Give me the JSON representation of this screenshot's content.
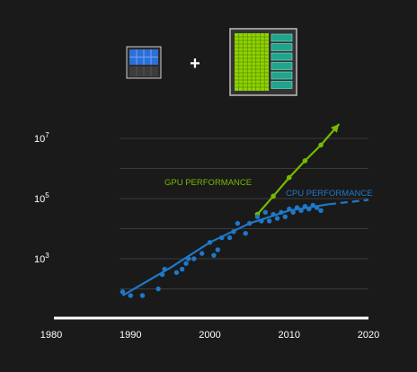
{
  "header": {
    "cpu_chip_icon": "cpu-chip-icon",
    "plus_sign": "+",
    "gpu_chip_icon": "gpu-chip-icon"
  },
  "colors": {
    "background": "#1a1a1a",
    "gpu": "#76b900",
    "cpu": "#1f78c8",
    "axis": "#ffffff",
    "grid": "#3a3a3a",
    "text": "#ffffff"
  },
  "chart_data": {
    "type": "scatter",
    "title": "",
    "xlabel": "",
    "ylabel": "",
    "y_scale": "log",
    "grid": true,
    "xlim": [
      1980,
      2020
    ],
    "ylim": [
      1,
      100000000
    ],
    "x_ticks": [
      1980,
      1990,
      2000,
      2010,
      2020
    ],
    "y_ticks": [
      {
        "value": 1000,
        "label_base": "10",
        "label_exp": "3"
      },
      {
        "value": 100000,
        "label_base": "10",
        "label_exp": "5"
      },
      {
        "value": 10000000,
        "label_base": "10",
        "label_exp": "7"
      }
    ],
    "series": [
      {
        "name": "GPU PERFORMANCE",
        "kind": "line-with-markers",
        "color": "#76b900",
        "x": [
          2006,
          2008,
          2010,
          2012,
          2014,
          2016.3
        ],
        "y": [
          30000,
          120000,
          500000,
          1800000,
          6000000,
          30000000
        ],
        "markers_until": 2014
      },
      {
        "name": "CPU PERFORMANCE",
        "kind": "scatter",
        "color": "#1f78c8",
        "x": [
          1989,
          1990,
          1991.5,
          1993.5,
          1994,
          1994.3,
          1995.8,
          1996.5,
          1997,
          1997.3,
          1998,
          1999,
          2000,
          2000.5,
          2001,
          2001.5,
          2002.5,
          2003,
          2003.5,
          2004.5,
          2005,
          2006,
          2006.5,
          2007,
          2007.5,
          2008,
          2008.5,
          2009,
          2009.5,
          2010,
          2010.5,
          2011,
          2011.5,
          2012,
          2012.5,
          2013,
          2013.5,
          2014
        ],
        "y": [
          80,
          60,
          60,
          100,
          300,
          450,
          350,
          450,
          700,
          1000,
          1000,
          1500,
          3500,
          1300,
          2000,
          5000,
          5000,
          8000,
          15000,
          7000,
          15000,
          25000,
          18000,
          35000,
          18000,
          30000,
          22000,
          35000,
          25000,
          45000,
          35000,
          50000,
          40000,
          55000,
          45000,
          60000,
          50000,
          40000
        ]
      },
      {
        "name": "",
        "kind": "trend-line",
        "color": "#1f78c8",
        "x": [
          1989,
          1995,
          2000,
          2005,
          2010,
          2015
        ],
        "y": [
          60,
          500,
          3500,
          15000,
          40000,
          65000
        ]
      },
      {
        "name": "",
        "kind": "trend-line-dashed",
        "color": "#1f78c8",
        "x": [
          2015,
          2020
        ],
        "y": [
          65000,
          90000
        ]
      }
    ]
  }
}
